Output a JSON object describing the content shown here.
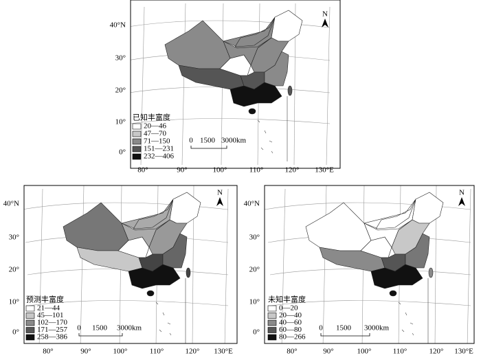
{
  "maps": [
    {
      "legend": {
        "title": "已知丰富度",
        "classes": [
          "20—46",
          "47—70",
          "71—150",
          "151—231",
          "232—406"
        ]
      },
      "lat_labels": [
        "40°N",
        "30°",
        "20°",
        "10°",
        "0°"
      ],
      "lon_labels": [
        "80°",
        "90°",
        "100°",
        "110°",
        "120°",
        "130°E"
      ],
      "scale": [
        "0",
        "1500",
        "3000km"
      ],
      "north": "N"
    },
    {
      "legend": {
        "title": "预测丰富度",
        "classes": [
          "21—44",
          "45—101",
          "102—170",
          "171—257",
          "258—386"
        ]
      },
      "lat_labels": [
        "40°N",
        "30°",
        "20°",
        "10°",
        "0°"
      ],
      "lon_labels": [
        "80°",
        "90°",
        "100°",
        "110°",
        "120°",
        "130°E"
      ],
      "scale": [
        "0",
        "1500",
        "3000km"
      ],
      "north": "N"
    },
    {
      "legend": {
        "title": "未知丰富度",
        "classes": [
          "0—20",
          "20—40",
          "40—60",
          "60—80",
          "80—266"
        ]
      },
      "lat_labels": [
        "40°N",
        "30°",
        "20°",
        "10°",
        "0°"
      ],
      "lon_labels": [
        "80°",
        "90°",
        "100°",
        "110°",
        "120°",
        "130°E"
      ],
      "scale": [
        "0",
        "1500",
        "3000km"
      ],
      "north": "N"
    }
  ]
}
